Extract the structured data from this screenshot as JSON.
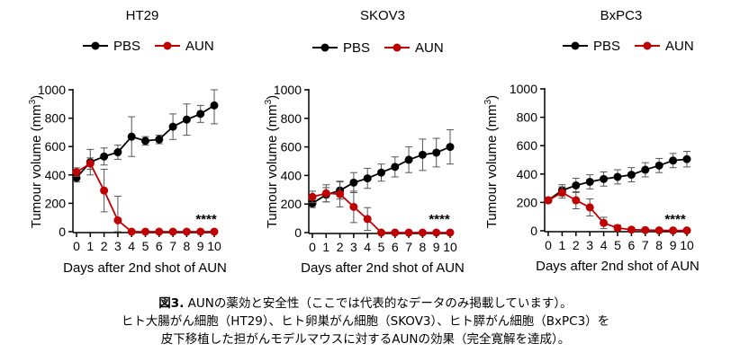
{
  "colors": {
    "pbs": "#000000",
    "aun": "#c00000",
    "axis": "#000000",
    "error": "#555555"
  },
  "chart_data": [
    {
      "type": "line",
      "title": "HT29",
      "xlabel": "Days after 2nd shot of AUN",
      "ylabel": "Tumour volume (mm3)",
      "ylabel_main": "Tumour volume (mm",
      "ylabel_sup": "3",
      "ylabel_end": ")",
      "x": [
        0,
        1,
        2,
        3,
        4,
        5,
        6,
        7,
        8,
        9,
        10
      ],
      "xticks": [
        "0",
        "1",
        "2",
        "3",
        "4",
        "5",
        "6",
        "7",
        "8",
        "9",
        "10"
      ],
      "ylim": [
        0,
        1000
      ],
      "yticks": [
        "0",
        "200",
        "400",
        "600",
        "800",
        "1000"
      ],
      "legend": [
        "PBS",
        "AUN"
      ],
      "annotation": "****",
      "series": [
        {
          "name": "PBS",
          "values": [
            380,
            490,
            530,
            560,
            670,
            640,
            650,
            740,
            790,
            830,
            890
          ],
          "errors": [
            30,
            90,
            60,
            50,
            140,
            30,
            30,
            90,
            110,
            60,
            130
          ]
        },
        {
          "name": "AUN",
          "values": [
            420,
            480,
            290,
            80,
            0,
            0,
            0,
            0,
            0,
            0,
            0
          ],
          "errors": [
            30,
            40,
            150,
            170,
            0,
            0,
            0,
            0,
            0,
            0,
            0
          ]
        }
      ]
    },
    {
      "type": "line",
      "title": "SKOV3",
      "xlabel": "Days after 2nd shot of AUN",
      "ylabel": "Tumour volume (mm3)",
      "ylabel_main": "Tumour volume (mm",
      "ylabel_sup": "3",
      "ylabel_end": ")",
      "x": [
        0,
        1,
        2,
        3,
        4,
        5,
        6,
        7,
        8,
        9,
        10
      ],
      "xticks": [
        "0",
        "1",
        "2",
        "3",
        "4",
        "5",
        "6",
        "7",
        "8",
        "9",
        "10"
      ],
      "ylim": [
        0,
        1000
      ],
      "yticks": [
        "0",
        "200",
        "400",
        "600",
        "800",
        "1000"
      ],
      "legend": [
        "PBS",
        "AUN"
      ],
      "annotation": "****",
      "series": [
        {
          "name": "PBS",
          "values": [
            205,
            265,
            295,
            350,
            380,
            420,
            460,
            510,
            545,
            560,
            600
          ],
          "errors": [
            30,
            50,
            60,
            70,
            70,
            60,
            70,
            90,
            110,
            100,
            120
          ]
        },
        {
          "name": "AUN",
          "values": [
            250,
            275,
            270,
            180,
            95,
            0,
            0,
            0,
            0,
            0,
            0
          ],
          "errors": [
            40,
            60,
            90,
            110,
            80,
            0,
            0,
            0,
            0,
            0,
            0
          ]
        }
      ]
    },
    {
      "type": "line",
      "title": "BxPC3",
      "xlabel": "Days after 2nd shot of AUN",
      "ylabel": "Tumour volume (mm3)",
      "ylabel_main": "Tumour volume (mm",
      "ylabel_sup": "3",
      "ylabel_end": ")",
      "x": [
        0,
        1,
        2,
        3,
        4,
        5,
        6,
        7,
        8,
        9,
        10
      ],
      "xticks": [
        "0",
        "1",
        "2",
        "3",
        "4",
        "5",
        "6",
        "7",
        "8",
        "9",
        "10"
      ],
      "ylim": [
        0,
        1000
      ],
      "yticks": [
        "0",
        "200",
        "400",
        "600",
        "800",
        "1000"
      ],
      "legend": [
        "PBS",
        "AUN"
      ],
      "annotation": "****",
      "series": [
        {
          "name": "PBS",
          "values": [
            215,
            285,
            320,
            345,
            365,
            380,
            395,
            430,
            460,
            495,
            505
          ],
          "errors": [
            15,
            40,
            50,
            50,
            50,
            50,
            50,
            50,
            50,
            50,
            55
          ]
        },
        {
          "name": "AUN",
          "values": [
            215,
            270,
            215,
            165,
            55,
            20,
            8,
            5,
            3,
            2,
            2
          ],
          "errors": [
            15,
            40,
            60,
            60,
            40,
            20,
            10,
            5,
            3,
            2,
            2
          ]
        }
      ]
    }
  ],
  "caption": {
    "figure_label": "図3.",
    "line1": " AUNの薬効と安全性（ここでは代表的なデータのみ掲載しています）。",
    "line2": "ヒト大腸がん細胞（HT29）、ヒト卵巣がん細胞（SKOV3）、ヒト膵がん細胞（BxPC3）を",
    "line3": "皮下移植した担がんモデルマウスに対するAUNの効果（完全寛解を達成）。"
  }
}
